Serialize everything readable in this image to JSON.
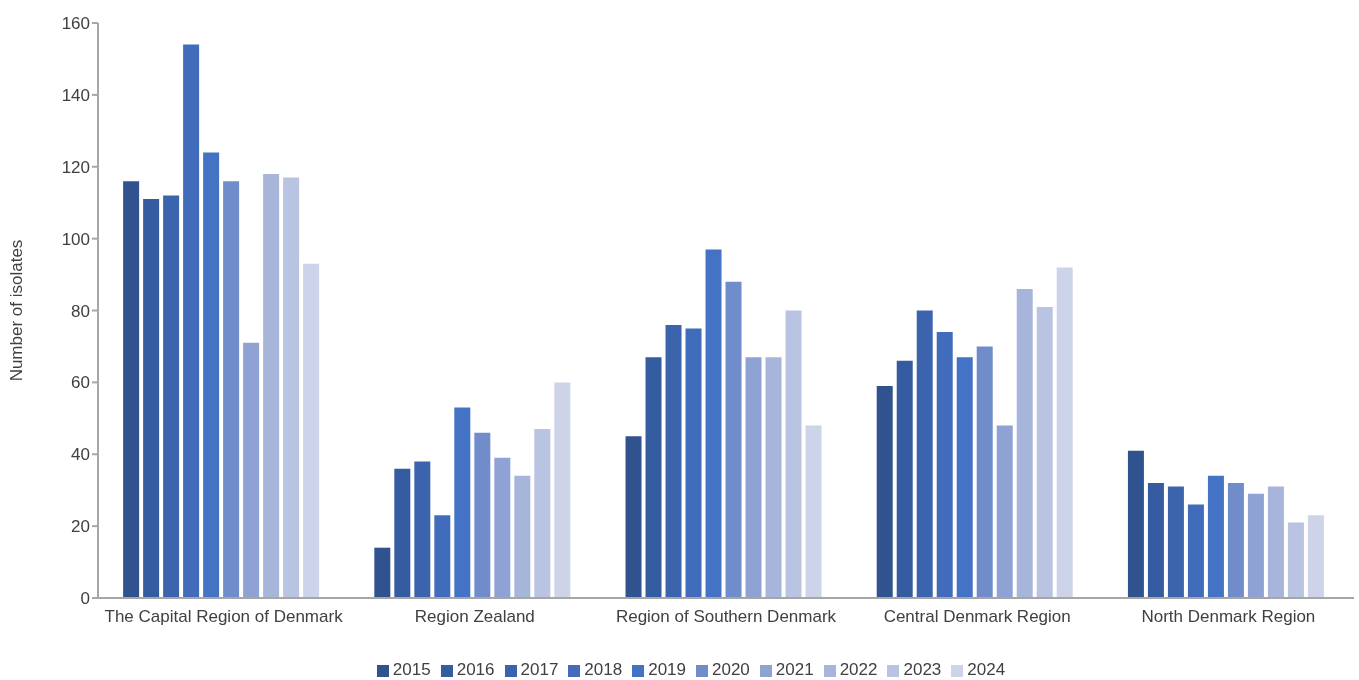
{
  "chart_data": {
    "type": "bar",
    "ylabel": "Number of isolates",
    "categories": [
      "The Capital Region of Denmark",
      "Region Zealand",
      "Region of Southern Denmark",
      "Central Denmark Region",
      "North Denmark Region"
    ],
    "series": [
      {
        "name": "2015",
        "color": "#30528f",
        "values": [
          116,
          14,
          45,
          59,
          41
        ]
      },
      {
        "name": "2016",
        "color": "#355ca0",
        "values": [
          111,
          36,
          67,
          66,
          32
        ]
      },
      {
        "name": "2017",
        "color": "#3c64ad",
        "values": [
          112,
          38,
          76,
          80,
          31
        ]
      },
      {
        "name": "2018",
        "color": "#406cbb",
        "values": [
          154,
          23,
          75,
          74,
          26
        ]
      },
      {
        "name": "2019",
        "color": "#4472c4",
        "values": [
          124,
          53,
          97,
          67,
          34
        ]
      },
      {
        "name": "2020",
        "color": "#718cca",
        "values": [
          116,
          46,
          88,
          70,
          32
        ]
      },
      {
        "name": "2021",
        "color": "#8fa2d4",
        "values": [
          71,
          39,
          67,
          48,
          29
        ]
      },
      {
        "name": "2022",
        "color": "#a8b5db",
        "values": [
          118,
          34,
          67,
          86,
          31
        ]
      },
      {
        "name": "2023",
        "color": "#b9c3e2",
        "values": [
          117,
          47,
          80,
          81,
          21
        ]
      },
      {
        "name": "2024",
        "color": "#cdd3e9",
        "values": [
          93,
          60,
          48,
          92,
          23
        ]
      }
    ],
    "ylim": [
      0,
      160
    ],
    "yticks": [
      0,
      20,
      40,
      60,
      80,
      100,
      120,
      140,
      160
    ],
    "grid": false,
    "legend": "bottom"
  }
}
